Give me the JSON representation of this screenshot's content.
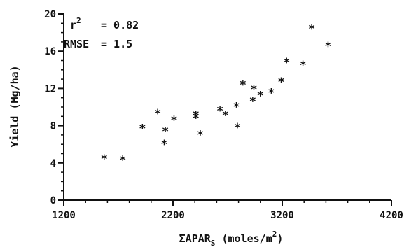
{
  "chart_data": {
    "type": "scatter",
    "xlabel": "ΣAPAR",
    "xlabel_sub": "S",
    "xlabel_units": "(moles/m",
    "xlabel_units_sup": "2",
    "xlabel_units_close": ")",
    "ylabel": "Yield (Mg/ha)",
    "xlim": [
      1200,
      4200
    ],
    "ylim": [
      0,
      20
    ],
    "xticks": [
      1200,
      2200,
      3200,
      4200
    ],
    "xtick_labels": [
      "1200",
      "2200",
      "3200",
      "4200"
    ],
    "yticks": [
      0,
      4,
      8,
      12,
      16,
      20
    ],
    "ytick_labels": [
      "0",
      "4",
      "8",
      "12",
      "16",
      "20"
    ],
    "annotations": {
      "r2_label": "r",
      "r2_sup": "2",
      "r2_value": "= 0.82",
      "rmse_label": "RMSE",
      "rmse_value": "= 1.5"
    },
    "marker": "*",
    "points": [
      {
        "x": 1570,
        "y": 4.5
      },
      {
        "x": 1740,
        "y": 4.4
      },
      {
        "x": 1920,
        "y": 7.8
      },
      {
        "x": 2060,
        "y": 9.4
      },
      {
        "x": 2120,
        "y": 6.1
      },
      {
        "x": 2130,
        "y": 7.5
      },
      {
        "x": 2210,
        "y": 8.7
      },
      {
        "x": 2410,
        "y": 9.2
      },
      {
        "x": 2410,
        "y": 8.9
      },
      {
        "x": 2450,
        "y": 7.1
      },
      {
        "x": 2630,
        "y": 9.7
      },
      {
        "x": 2680,
        "y": 9.2
      },
      {
        "x": 2780,
        "y": 10.1
      },
      {
        "x": 2790,
        "y": 7.9
      },
      {
        "x": 2840,
        "y": 12.5
      },
      {
        "x": 2930,
        "y": 10.7
      },
      {
        "x": 2940,
        "y": 12.0
      },
      {
        "x": 3000,
        "y": 11.3
      },
      {
        "x": 3100,
        "y": 11.6
      },
      {
        "x": 3190,
        "y": 12.8
      },
      {
        "x": 3240,
        "y": 14.9
      },
      {
        "x": 3390,
        "y": 14.6
      },
      {
        "x": 3470,
        "y": 18.5
      },
      {
        "x": 3620,
        "y": 16.6
      }
    ]
  }
}
